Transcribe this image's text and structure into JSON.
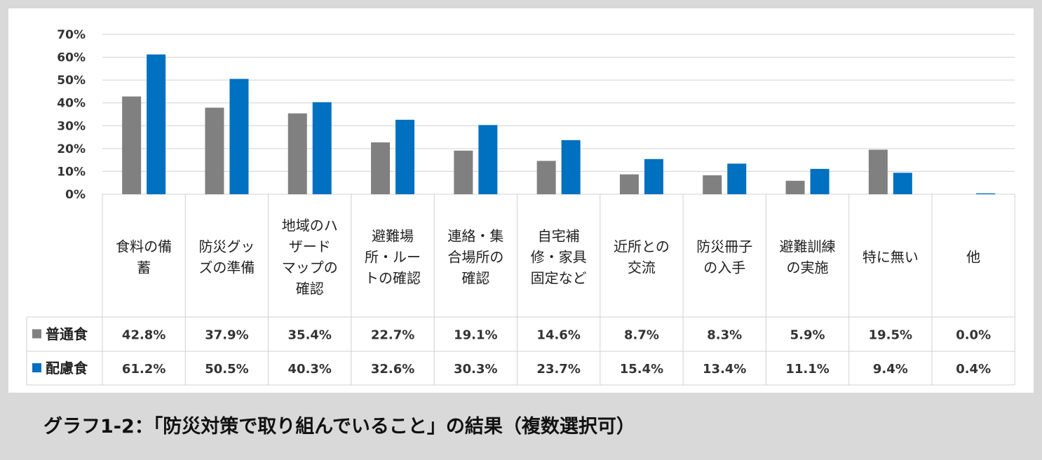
{
  "caption": "グラフ1-2：「防災対策で取り組んでいること」の結果（複数選択可）",
  "chart_data": {
    "type": "bar",
    "categories": [
      [
        "食料の備",
        "蓄"
      ],
      [
        "防災グッ",
        "ズの準備"
      ],
      [
        "地域のハ",
        "ザード",
        "マップの",
        "確認"
      ],
      [
        "避難場",
        "所・ルー",
        "トの確認"
      ],
      [
        "連絡・集",
        "合場所の",
        "確認"
      ],
      [
        "自宅補",
        "修・家具",
        "固定など"
      ],
      [
        "近所との",
        "交流"
      ],
      [
        "防災冊子",
        "の入手"
      ],
      [
        "避難訓練",
        "の実施"
      ],
      [
        "特に無い"
      ],
      [
        "他"
      ]
    ],
    "series": [
      {
        "name": "普通食",
        "color": "#808080",
        "values": [
          42.8,
          37.9,
          35.4,
          22.7,
          19.1,
          14.6,
          8.7,
          8.3,
          5.9,
          19.5,
          0.0
        ],
        "labels": [
          "42.8%",
          "37.9%",
          "35.4%",
          "22.7%",
          "19.1%",
          "14.6%",
          "8.7%",
          "8.3%",
          "5.9%",
          "19.5%",
          "0.0%"
        ]
      },
      {
        "name": "配慮食",
        "color": "#0070c0",
        "values": [
          61.2,
          50.5,
          40.3,
          32.6,
          30.3,
          23.7,
          15.4,
          13.4,
          11.1,
          9.4,
          0.4
        ],
        "labels": [
          "61.2%",
          "50.5%",
          "40.3%",
          "32.6%",
          "30.3%",
          "23.7%",
          "15.4%",
          "13.4%",
          "11.1%",
          "9.4%",
          "0.4%"
        ]
      }
    ],
    "ylim": [
      0,
      70
    ],
    "yticks": [
      "0%",
      "10%",
      "20%",
      "30%",
      "40%",
      "50%",
      "60%",
      "70%"
    ],
    "grid": true,
    "legend": "data-table-left"
  }
}
